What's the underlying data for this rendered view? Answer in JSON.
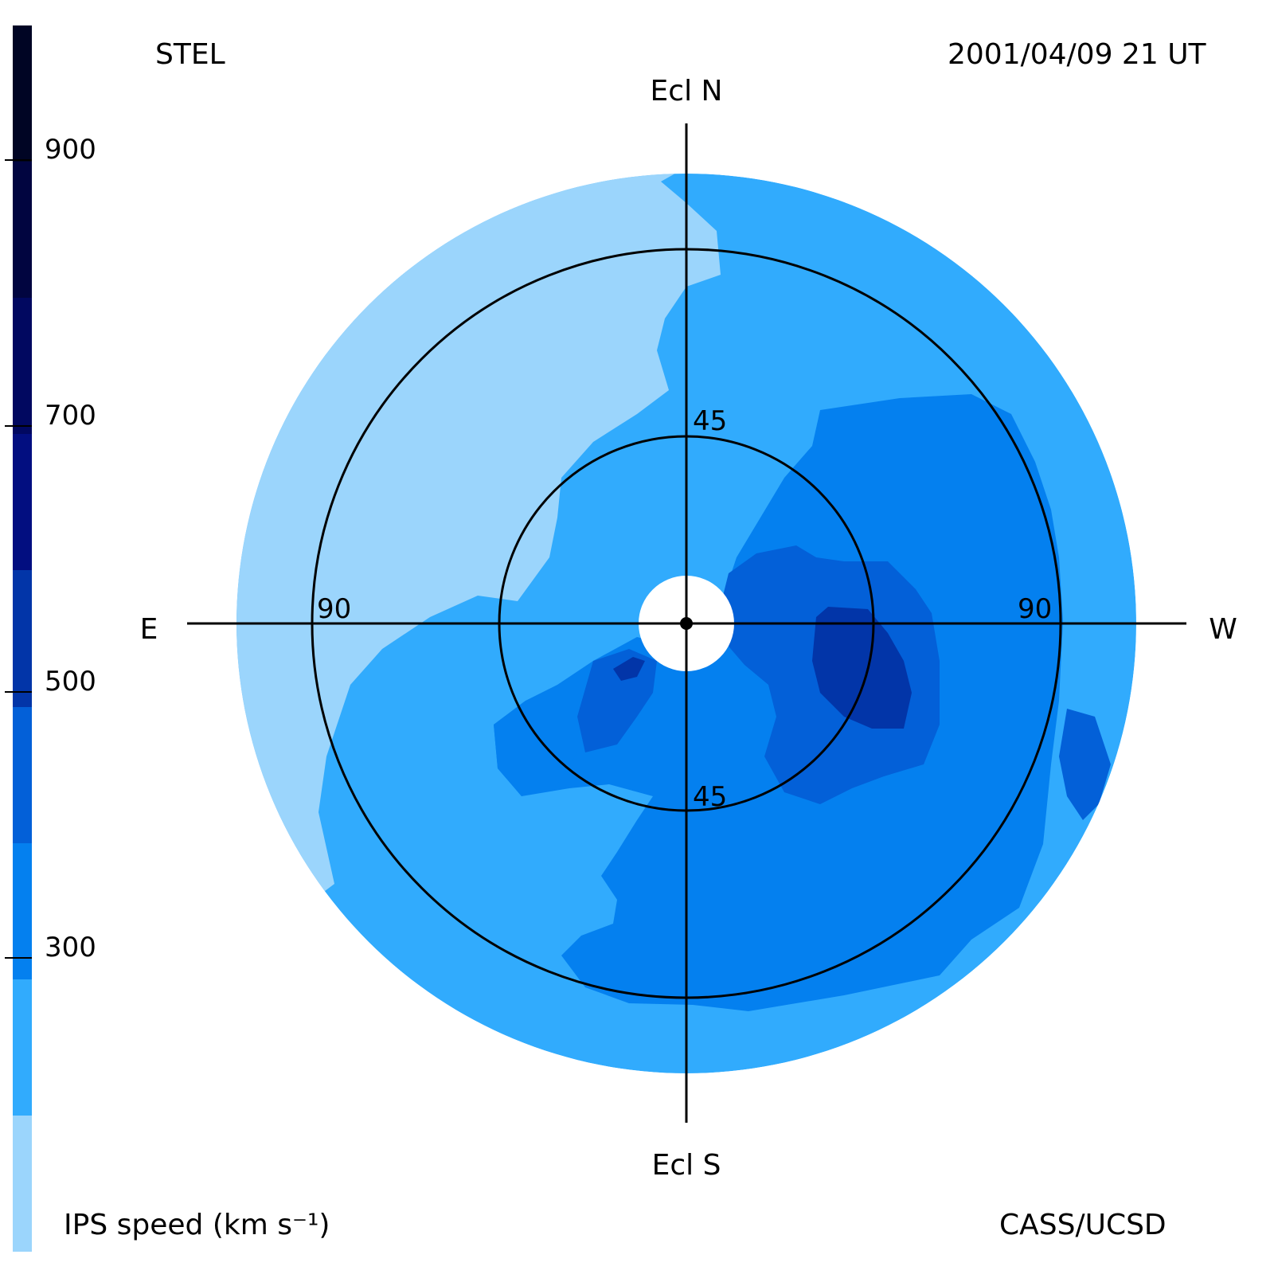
{
  "header": {
    "left_label": "STEL",
    "right_label": "2001/04/09 21 UT"
  },
  "footer": {
    "left_label": "IPS speed (km s⁻¹)",
    "right_label": "CASS/UCSD"
  },
  "directions": {
    "north": "Ecl N",
    "south": "Ecl S",
    "east": "E",
    "west": "W"
  },
  "ring_labels": {
    "inner_north": "45",
    "inner_south": "45",
    "outer_east": "90",
    "outer_west": "90"
  },
  "colorbar": {
    "min": 100,
    "max": 1000,
    "ticks": [
      "900",
      "700",
      "500",
      "300"
    ],
    "bands": [
      {
        "from": 100,
        "to": 200,
        "color": "#9bd5fc"
      },
      {
        "from": 200,
        "to": 300,
        "color": "#31abfd"
      },
      {
        "from": 300,
        "to": 400,
        "color": "#0480ef"
      },
      {
        "from": 400,
        "to": 500,
        "color": "#0360d8"
      },
      {
        "from": 500,
        "to": 600,
        "color": "#0235a8"
      },
      {
        "from": 600,
        "to": 700,
        "color": "#020e80"
      },
      {
        "from": 700,
        "to": 800,
        "color": "#010860"
      },
      {
        "from": 800,
        "to": 900,
        "color": "#010540"
      },
      {
        "from": 900,
        "to": 1000,
        "color": "#000524"
      }
    ]
  },
  "colors": {
    "slow": "#9bd5fc",
    "base": "#31abfd",
    "medium": "#0480ef",
    "fast": "#0360d8",
    "faster": "#0235a8"
  }
}
